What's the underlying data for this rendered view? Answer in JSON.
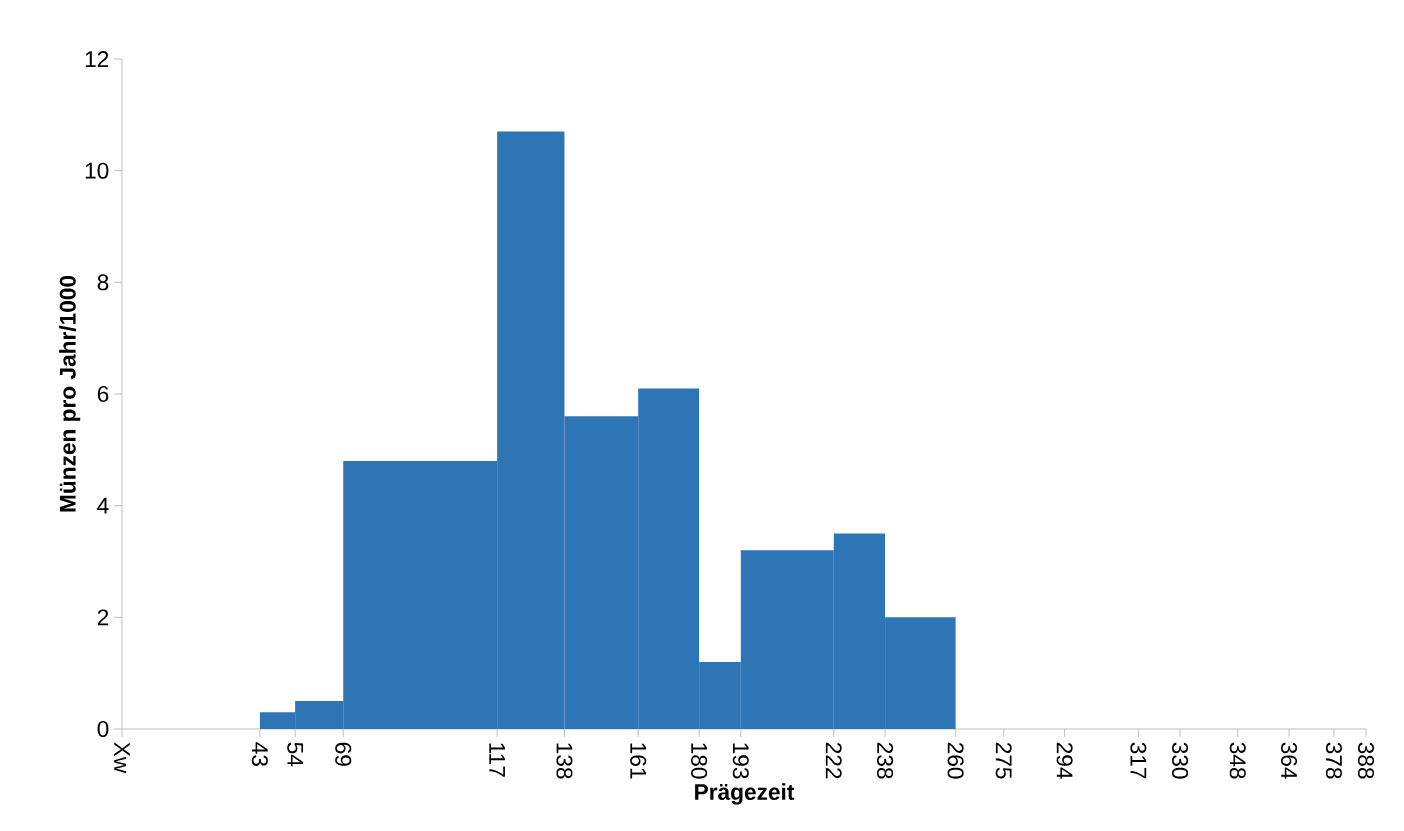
{
  "chart_data": {
    "type": "histogram",
    "xlabel": "Prägezeit",
    "ylabel": "Münzen pro Jahr/1000",
    "bins": [
      43,
      54,
      69,
      117,
      138,
      161,
      180,
      193,
      222,
      238,
      260
    ],
    "values": [
      0.3,
      0.5,
      4.8,
      10.7,
      5.6,
      6.1,
      1.2,
      3.2,
      3.5,
      2.0
    ],
    "color": "#2e75b6",
    "xlim": [
      0,
      388
    ],
    "ylim": [
      0,
      12
    ],
    "xticks": [
      {
        "value": 0,
        "label": "Xw"
      },
      43,
      54,
      69,
      117,
      138,
      161,
      180,
      193,
      222,
      238,
      260,
      275,
      294,
      317,
      330,
      348,
      364,
      378,
      388
    ],
    "yticks": [
      0,
      2,
      4,
      6,
      8,
      10,
      12
    ]
  }
}
